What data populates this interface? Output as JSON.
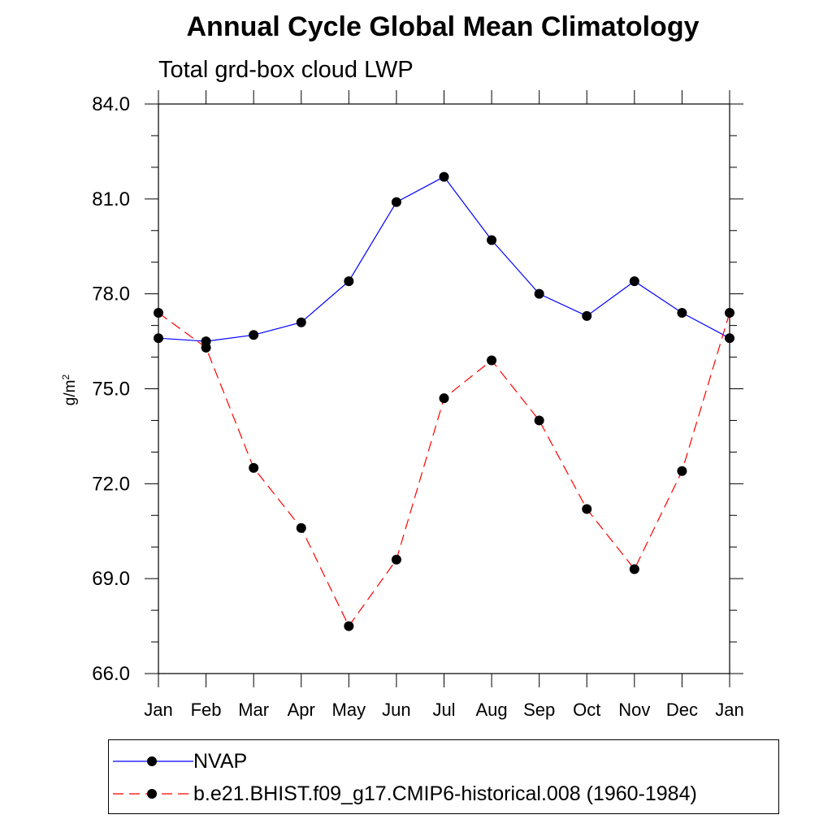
{
  "chart_data": {
    "type": "line",
    "title": "Annual Cycle Global Mean Climatology",
    "subtitle": "Total grd-box cloud LWP",
    "ylabel_base": "g/m",
    "ylabel_sup": "2",
    "xlabel": "",
    "categories": [
      "Jan",
      "Feb",
      "Mar",
      "Apr",
      "May",
      "Jun",
      "Jul",
      "Aug",
      "Sep",
      "Oct",
      "Nov",
      "Dec",
      "Jan"
    ],
    "ylim": [
      66.0,
      84.0
    ],
    "yticks": [
      "66.0",
      "69.0",
      "72.0",
      "75.0",
      "78.0",
      "81.0",
      "84.0"
    ],
    "grid": false,
    "legend_position": "bottom",
    "series": [
      {
        "name": "NVAP",
        "color": "#0000ff",
        "dash": "solid",
        "marker": "filled-circle",
        "values": [
          76.6,
          76.5,
          76.7,
          77.1,
          78.4,
          80.9,
          81.7,
          79.7,
          78.0,
          77.3,
          78.4,
          77.4,
          76.6
        ]
      },
      {
        "name": "b.e21.BHIST.f09_g17.CMIP6-historical.008 (1960-1984)",
        "color": "#ff0000",
        "dash": "dashed",
        "marker": "filled-circle",
        "values": [
          77.4,
          76.3,
          72.5,
          70.6,
          67.5,
          69.6,
          74.7,
          75.9,
          74.0,
          71.2,
          69.3,
          72.4,
          77.4
        ]
      }
    ]
  }
}
